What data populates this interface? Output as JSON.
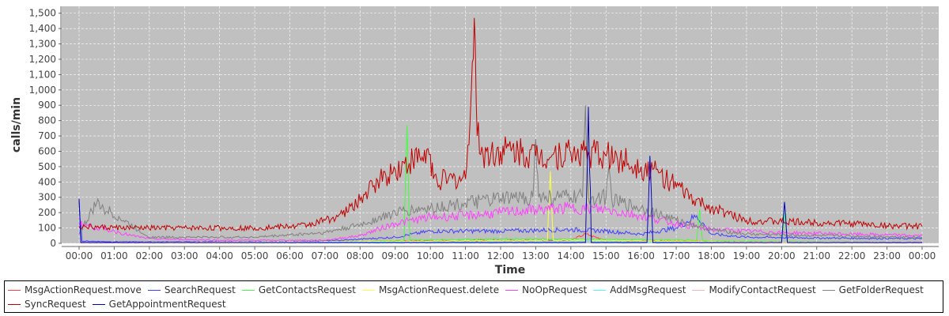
{
  "chart_data": {
    "type": "line",
    "xlabel": "Time",
    "ylabel": "calls/min",
    "ylim": [
      0,
      1545
    ],
    "yticks": [
      "0",
      "100",
      "200",
      "300",
      "400",
      "500",
      "600",
      "700",
      "800",
      "900",
      "1,000",
      "1,100",
      "1,200",
      "1,300",
      "1,400",
      "1,500"
    ],
    "xticks": [
      "00:00",
      "01:00",
      "02:00",
      "03:00",
      "04:00",
      "05:00",
      "06:00",
      "07:00",
      "08:00",
      "09:00",
      "10:00",
      "11:00",
      "12:00",
      "13:00",
      "14:00",
      "15:00",
      "16:00",
      "17:00",
      "18:00",
      "19:00",
      "20:00",
      "21:00",
      "22:00",
      "23:00",
      "00:00"
    ],
    "grid": true,
    "background": "#c0c0c0",
    "legend_position": "bottom",
    "series": [
      {
        "name": "MsgActionRequest.move",
        "color": "#ff4040",
        "x": [
          "00:00",
          "07:00",
          "09:00",
          "12:00",
          "14:00",
          "14:25",
          "15:00",
          "17:00",
          "19:00",
          "24:00"
        ],
        "y": [
          5,
          5,
          15,
          20,
          20,
          60,
          20,
          15,
          8,
          5
        ]
      },
      {
        "name": "SearchRequest",
        "color": "#4040ff",
        "x": [
          "00:00",
          "00:05",
          "01:00",
          "06:00",
          "07:30",
          "09:00",
          "10:00",
          "12:00",
          "14:00",
          "15:00",
          "16:00",
          "17:00",
          "17:35",
          "18:00",
          "19:00",
          "21:00",
          "24:00"
        ],
        "y": [
          280,
          15,
          10,
          10,
          20,
          40,
          80,
          80,
          90,
          80,
          60,
          100,
          180,
          60,
          40,
          35,
          30
        ]
      },
      {
        "name": "GetContactsRequest",
        "color": "#40ff40",
        "x": [
          "00:00",
          "07:00",
          "09:15",
          "09:20",
          "09:25",
          "12:00",
          "15:00",
          "17:35",
          "17:40",
          "17:45",
          "20:00",
          "20:05",
          "20:10",
          "24:00"
        ],
        "y": [
          5,
          5,
          20,
          770,
          20,
          30,
          25,
          20,
          220,
          15,
          10,
          200,
          10,
          5
        ]
      },
      {
        "name": "MsgActionRequest.delete",
        "color": "#ffff40",
        "x": [
          "00:00",
          "07:00",
          "13:20",
          "13:25",
          "13:30",
          "14:25",
          "14:30",
          "14:35",
          "19:00",
          "24:00"
        ],
        "y": [
          5,
          10,
          20,
          470,
          20,
          20,
          720,
          20,
          8,
          5
        ]
      },
      {
        "name": "NoOpRequest",
        "color": "#ff40ff",
        "x": [
          "00:00",
          "00:30",
          "01:00",
          "01:30",
          "02:00",
          "04:00",
          "07:00",
          "08:00",
          "09:00",
          "10:00",
          "11:00",
          "12:00",
          "13:00",
          "14:00",
          "15:00",
          "16:00",
          "17:00",
          "18:00",
          "19:00",
          "20:00",
          "22:00",
          "24:00"
        ],
        "y": [
          130,
          100,
          80,
          50,
          30,
          20,
          20,
          50,
          130,
          170,
          180,
          200,
          220,
          230,
          220,
          180,
          130,
          90,
          80,
          70,
          60,
          50
        ]
      },
      {
        "name": "AddMsgRequest",
        "color": "#40ffff",
        "x": [
          "00:00",
          "09:00",
          "15:00",
          "19:00",
          "24:00"
        ],
        "y": [
          3,
          8,
          10,
          5,
          3
        ]
      },
      {
        "name": "ModifyContactRequest",
        "color": "#ffb0b0",
        "x": [
          "00:00",
          "24:00"
        ],
        "y": [
          2,
          2
        ]
      },
      {
        "name": "GetFolderRequest",
        "color": "#808080",
        "x": [
          "00:00",
          "00:30",
          "02:00",
          "05:00",
          "07:00",
          "08:00",
          "09:00",
          "10:00",
          "11:00",
          "12:00",
          "12:55",
          "13:00",
          "13:05",
          "14:00",
          "14:20",
          "14:25",
          "14:30",
          "15:00",
          "15:05",
          "15:10",
          "16:00",
          "17:00",
          "18:00",
          "19:00",
          "21:00",
          "24:00"
        ],
        "y": [
          60,
          260,
          40,
          40,
          70,
          120,
          200,
          230,
          260,
          290,
          300,
          680,
          300,
          300,
          300,
          900,
          300,
          300,
          500,
          280,
          230,
          150,
          90,
          60,
          50,
          40
        ]
      },
      {
        "name": "SyncRequest",
        "color": "#c00000",
        "x": [
          "00:00",
          "00:30",
          "01:30",
          "03:00",
          "05:00",
          "05:30",
          "06:00",
          "06:30",
          "07:00",
          "07:30",
          "08:00",
          "08:30",
          "09:00",
          "09:30",
          "10:00",
          "10:05",
          "10:30",
          "11:00",
          "11:10",
          "11:15",
          "11:20",
          "11:30",
          "12:00",
          "12:30",
          "13:00",
          "13:30",
          "14:00",
          "14:30",
          "15:00",
          "15:30",
          "16:00",
          "16:30",
          "17:00",
          "17:30",
          "18:00",
          "18:30",
          "19:00",
          "20:00",
          "21:00",
          "22:00",
          "23:00",
          "24:00"
        ],
        "y": [
          110,
          105,
          100,
          100,
          100,
          105,
          110,
          120,
          150,
          190,
          280,
          410,
          480,
          540,
          580,
          420,
          410,
          420,
          1000,
          1470,
          700,
          580,
          600,
          600,
          570,
          580,
          590,
          590,
          570,
          540,
          500,
          460,
          370,
          280,
          230,
          190,
          150,
          140,
          135,
          130,
          115,
          110
        ]
      },
      {
        "name": "GetAppointmentRequest",
        "color": "#0000c0",
        "x": [
          "00:00",
          "00:03",
          "14:25",
          "14:30",
          "14:35",
          "16:10",
          "16:15",
          "16:20",
          "20:00",
          "20:05",
          "20:10",
          "24:00"
        ],
        "y": [
          290,
          5,
          5,
          890,
          5,
          5,
          570,
          5,
          5,
          270,
          5,
          5
        ]
      }
    ]
  }
}
